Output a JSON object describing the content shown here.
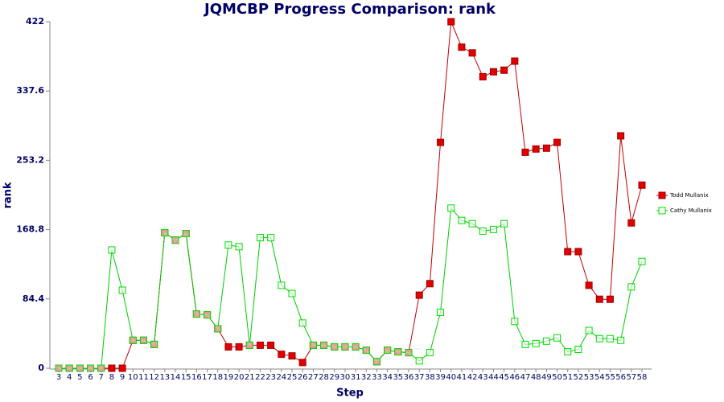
{
  "chart_data": {
    "type": "line",
    "title": "JQMCBP Progress Comparison: rank",
    "x_label": "Step",
    "y_label": "rank",
    "categories": [
      3,
      4,
      5,
      6,
      7,
      8,
      9,
      10,
      11,
      12,
      13,
      14,
      15,
      16,
      17,
      18,
      19,
      20,
      21,
      22,
      23,
      24,
      25,
      26,
      27,
      28,
      29,
      30,
      31,
      32,
      33,
      34,
      35,
      36,
      37,
      38,
      39,
      40,
      41,
      42,
      43,
      44,
      45,
      46,
      47,
      48,
      49,
      50,
      51,
      52,
      53,
      54,
      55,
      56,
      57,
      58
    ],
    "ylim": [
      0,
      422
    ],
    "yticks": [
      0,
      84.4,
      168.8,
      253.2,
      337.6,
      422
    ],
    "legend": "right",
    "series": [
      {
        "name": "Todd Mullanix",
        "color": "#e00000",
        "line_color": "#c00000",
        "values": [
          0,
          0,
          0,
          0,
          0,
          0,
          0,
          34,
          34,
          29,
          165,
          156,
          164,
          66,
          65,
          48,
          26,
          26,
          28,
          28,
          28,
          17,
          15,
          7,
          28,
          28,
          26,
          26,
          26,
          22,
          8,
          22,
          20,
          19,
          89,
          103,
          275,
          422,
          391,
          384,
          355,
          361,
          363,
          374,
          263,
          267,
          268,
          275,
          142,
          142,
          101,
          84,
          84,
          283,
          177,
          223
        ]
      },
      {
        "name": "Cathy Mullanix",
        "color": "#00dd00",
        "line_color": "#00cc00",
        "hollow": true,
        "values": [
          0,
          0,
          0,
          0,
          0,
          144,
          95,
          34,
          34,
          29,
          165,
          156,
          164,
          66,
          65,
          48,
          150,
          148,
          28,
          159,
          159,
          101,
          91,
          55,
          28,
          28,
          26,
          26,
          26,
          22,
          8,
          22,
          20,
          19,
          9,
          19,
          68,
          195,
          180,
          176,
          167,
          169,
          176,
          57,
          29,
          30,
          33,
          37,
          20,
          23,
          46,
          36,
          36,
          34,
          99,
          130
        ]
      }
    ]
  }
}
